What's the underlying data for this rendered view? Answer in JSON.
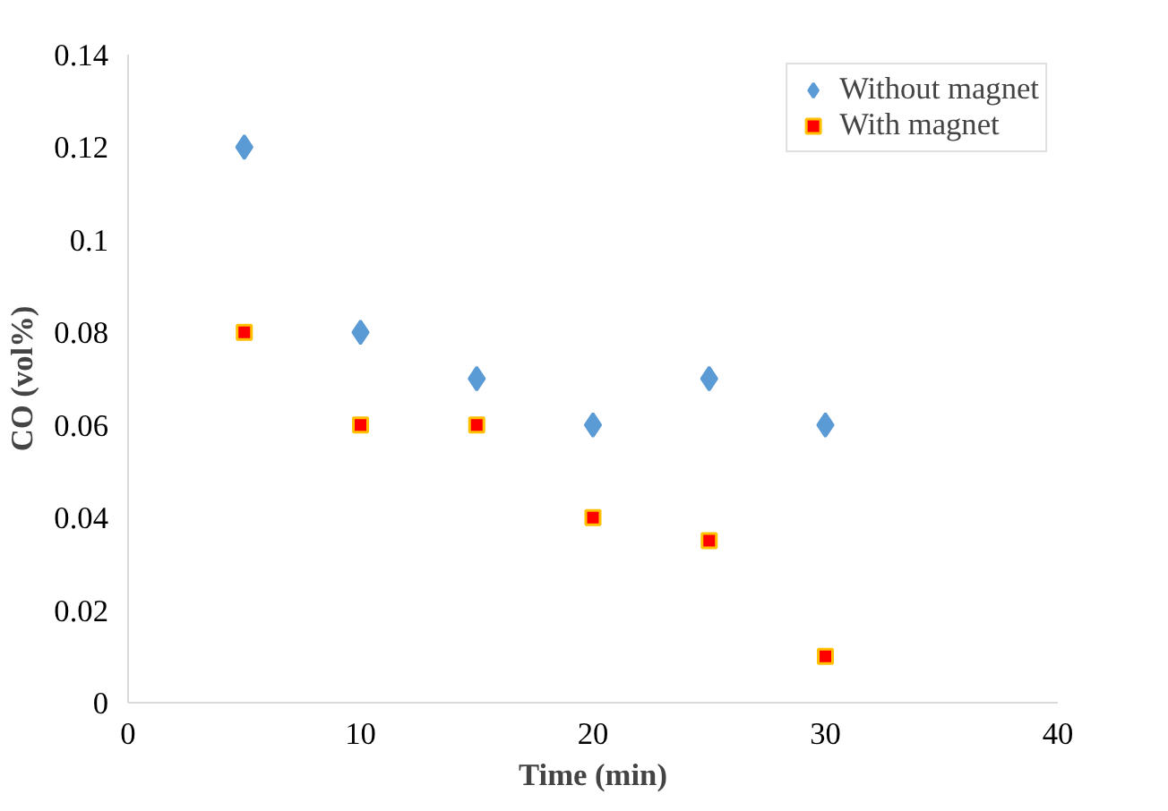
{
  "chart_data": {
    "type": "scatter",
    "xlabel": "Time (min)",
    "ylabel": "CO (vol%)",
    "x": [
      5,
      10,
      15,
      20,
      25,
      30
    ],
    "series": [
      {
        "name": "Without magnet",
        "color": "#5b9bd5",
        "marker": "diamond",
        "values": [
          0.12,
          0.08,
          0.07,
          0.06,
          0.07,
          0.06
        ]
      },
      {
        "name": "With magnet",
        "color": "#ff0000",
        "marker": "square",
        "values": [
          0.08,
          0.06,
          0.06,
          0.04,
          0.035,
          0.01
        ]
      }
    ],
    "xlim": [
      0,
      40
    ],
    "xticks": [
      0,
      10,
      20,
      30,
      40
    ],
    "ylim": [
      0,
      0.14
    ],
    "yticks": [
      0,
      0.02,
      0.04,
      0.06,
      0.08,
      0.1,
      0.12,
      0.14
    ],
    "grid": false,
    "legend": "top right"
  }
}
